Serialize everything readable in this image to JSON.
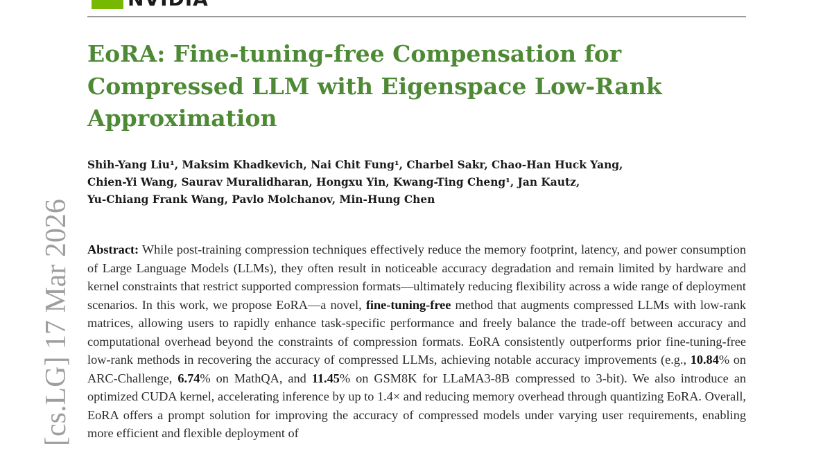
{
  "header": {
    "logo_text": "NVIDIA"
  },
  "side_label": "[cs.LG] 17 Mar 2026",
  "title": "EoRA: Fine-tuning-free Compensation for Compressed LLM with Eigenspace Low-Rank Approximation",
  "authors": {
    "line1": "Shih-Yang Liu¹, Maksim Khadkevich, Nai Chit Fung¹, Charbel Sakr, Chao-Han Huck Yang,",
    "line2": "Chien-Yi Wang, Saurav Muralidharan, Hongxu Yin, Kwang-Ting Cheng¹, Jan Kautz,",
    "line3": "Yu-Chiang Frank Wang, Pavlo Molchanov, Min-Hung Chen"
  },
  "abstract": {
    "label": "Abstract:",
    "p1": " While post-training compression techniques effectively reduce the memory footprint, latency, and power consumption of Large Language Models (LLMs), they often result in noticeable accuracy degradation and remain limited by hardware and kernel constraints that restrict supported compression formats—ultimately reducing flexibility across a wide range of deployment scenarios. In this work, we propose EoRA—a novel, ",
    "bold1": "fine-tuning-free",
    "p2": " method that augments compressed LLMs with low-rank matrices, allowing users to rapidly enhance task-specific performance and freely balance the trade-off between accuracy and computational overhead beyond the constraints of compression formats. EoRA consistently outperforms prior fine-tuning-free low-rank methods in recovering the accuracy of compressed LLMs, achieving notable accuracy improvements (e.g., ",
    "bold2": "10.84",
    "p3": "% on ARC-Challenge, ",
    "bold3": "6.74",
    "p4": "% on MathQA, and ",
    "bold4": "11.45",
    "p5": "% on GSM8K for LLaMA3-8B compressed to 3-bit). We also introduce an optimized CUDA kernel, accelerating inference by up to 1.4× and reducing memory overhead through quantizing EoRA. Overall, EoRA offers a prompt solution for improving the accuracy of compressed models under varying user requirements, enabling more efficient and flexible deployment of"
  },
  "colors": {
    "title_green": "#4e8a35",
    "logo_green": "#76b900",
    "rule_gray": "#9a9a9a",
    "side_gray": "#9e9e9e"
  }
}
